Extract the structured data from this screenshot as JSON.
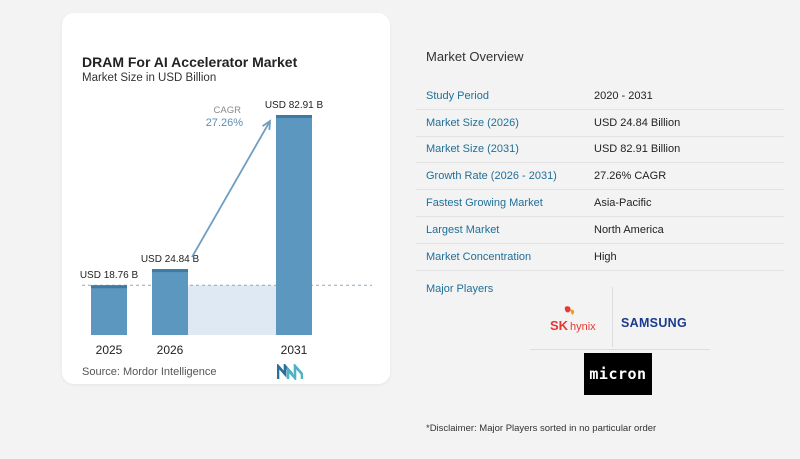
{
  "chart": {
    "title": "DRAM For AI Accelerator Market",
    "subtitle": "Market Size in USD Billion",
    "source": "Source:  Mordor Intelligence",
    "cagr_label": "CAGR",
    "cagr_value": "27.26%"
  },
  "chart_data": {
    "type": "bar",
    "title": "DRAM For AI Accelerator Market",
    "subtitle": "Market Size in USD Billion",
    "categories": [
      "2025",
      "2026",
      "2031"
    ],
    "values": [
      18.76,
      24.84,
      82.91
    ],
    "data_labels": [
      "USD 18.76 B",
      "USD 24.84 B",
      "USD 82.91 B"
    ],
    "annotation": {
      "label": "CAGR",
      "value": "27.26%"
    },
    "grid": false,
    "colors": {
      "bar": "#5b97be",
      "bar_dark": "#3f7aa3",
      "highlight": "#dfe9f3",
      "arrow": "#6e9ec2"
    }
  },
  "overview": {
    "title": "Market Overview",
    "rows": [
      {
        "label": "Study Period",
        "value": "2020 - 2031"
      },
      {
        "label": "Market Size (2026)",
        "value": "USD 24.84 Billion"
      },
      {
        "label": "Market Size (2031)",
        "value": "USD 82.91 Billion"
      },
      {
        "label": "Growth Rate (2026 - 2031)",
        "value": "27.26% CAGR"
      },
      {
        "label": "Fastest Growing Market",
        "value": "Asia-Pacific"
      },
      {
        "label": "Largest Market",
        "value": "North America"
      },
      {
        "label": "Market Concentration",
        "value": "High"
      }
    ]
  },
  "players": {
    "title": "Major Players",
    "logos": [
      "SK hynix",
      "SAMSUNG",
      "micron"
    ],
    "sk_text": "SK",
    "hynix_text": "hynix",
    "samsung_text": "SAMSUNG",
    "micron_text": "micron"
  },
  "disclaimer": "*Disclaimer: Major Players sorted in no particular order"
}
